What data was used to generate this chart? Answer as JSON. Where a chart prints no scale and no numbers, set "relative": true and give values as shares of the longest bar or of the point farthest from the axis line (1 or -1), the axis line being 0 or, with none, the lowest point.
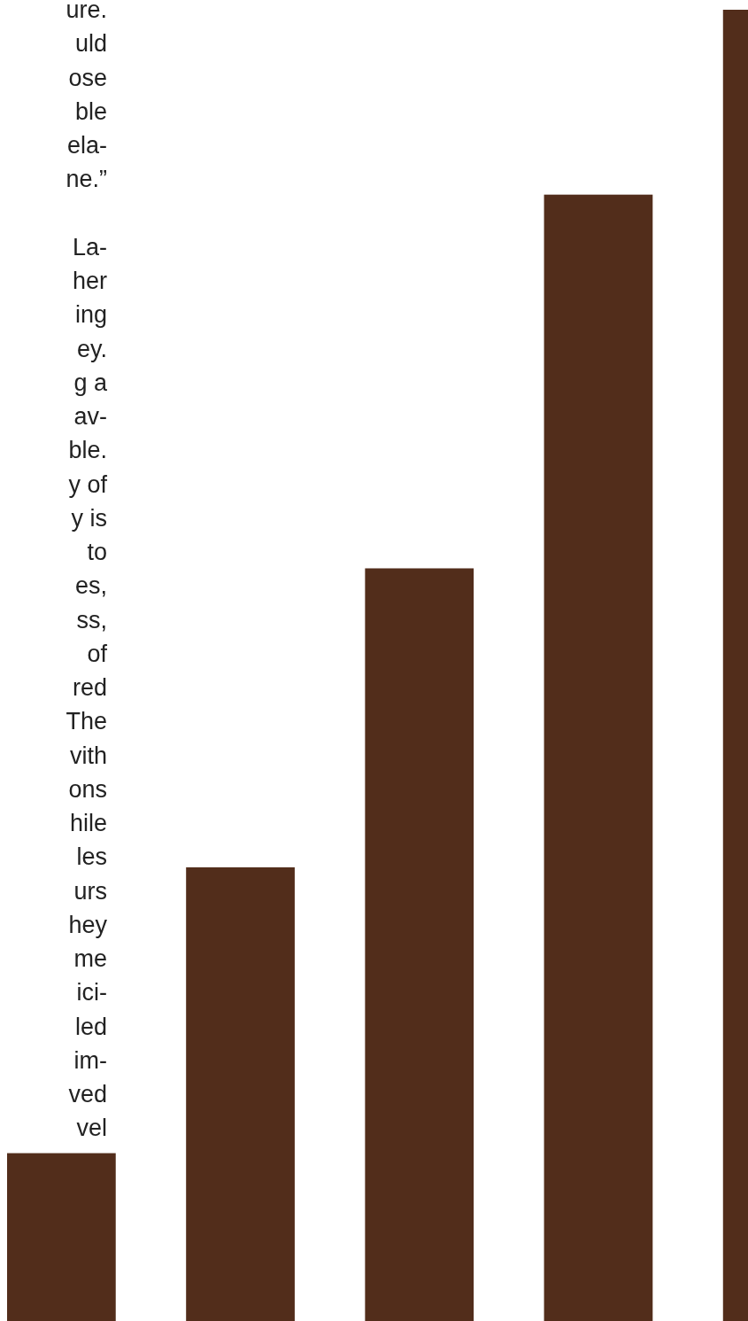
{
  "chart_data": {
    "type": "bar",
    "relative": true,
    "color": "#522d1b",
    "categories": [
      null,
      null,
      null,
      null,
      null
    ],
    "values": [
      0.128,
      0.346,
      0.574,
      0.859,
      1
    ],
    "annotations": [
      "ure.\nuld\nose\nble\nela-\nne.”",
      "La-\nher\ning\ney.\ng a\nav-\nble.\ny of\ny is\nto\nes,\nss,\nof\nred\nThe\nvith\nons\nhile\nles\nurs\nhey\nme\nici-\nled\nim-\nved\nvel"
    ]
  }
}
